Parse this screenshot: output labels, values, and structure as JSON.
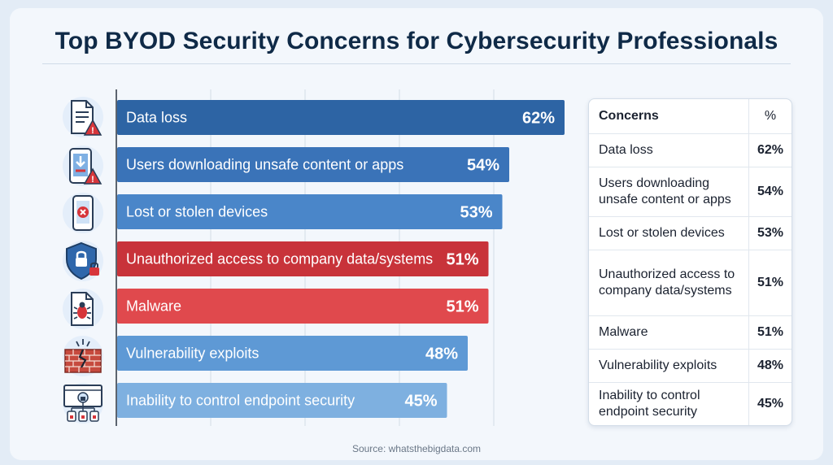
{
  "title": "Top BYOD Security Concerns for Cybersecurity Professionals",
  "source": "Source: whatsthebigdata.com",
  "chart_data": {
    "type": "bar",
    "orientation": "horizontal",
    "title": "Top BYOD Security Concerns for Cybersecurity Professionals",
    "xlabel": "",
    "ylabel": "",
    "xlim": [
      0,
      100
    ],
    "grid": true,
    "categories": [
      "Data loss",
      "Users downloading unsafe content or apps",
      "Lost or stolen devices",
      "Unauthorized access to company data/systems",
      "Malware",
      "Vulnerability exploits",
      "Inability to control endpoint security"
    ],
    "values": [
      62,
      54,
      53,
      51,
      51,
      48,
      45
    ],
    "value_labels": [
      "62%",
      "54%",
      "53%",
      "51%",
      "51%",
      "48%",
      "45%"
    ],
    "colors": [
      "#2d64a4",
      "#3a73b8",
      "#4a86c9",
      "#c8333a",
      "#e0494d",
      "#5e99d5",
      "#7eb0e0"
    ],
    "icons": [
      "document-warning-icon",
      "phone-download-warning-icon",
      "phone-blocked-icon",
      "shield-lock-icon",
      "malware-bug-icon",
      "broken-wall-icon",
      "network-lock-icon"
    ]
  },
  "table": {
    "headers": [
      "Concerns",
      "%"
    ],
    "rows": [
      {
        "concern": "Data loss",
        "pct": "62%"
      },
      {
        "concern": "Users downloading unsafe content or apps",
        "pct": "54%"
      },
      {
        "concern": "Lost or stolen devices",
        "pct": "53%"
      },
      {
        "concern": "Unauthorized access to company data/systems",
        "pct": "51%"
      },
      {
        "concern": "Malware",
        "pct": "51%"
      },
      {
        "concern": "Vulnerability exploits",
        "pct": "48%"
      },
      {
        "concern": "Inability to control endpoint security",
        "pct": "45%"
      }
    ]
  }
}
